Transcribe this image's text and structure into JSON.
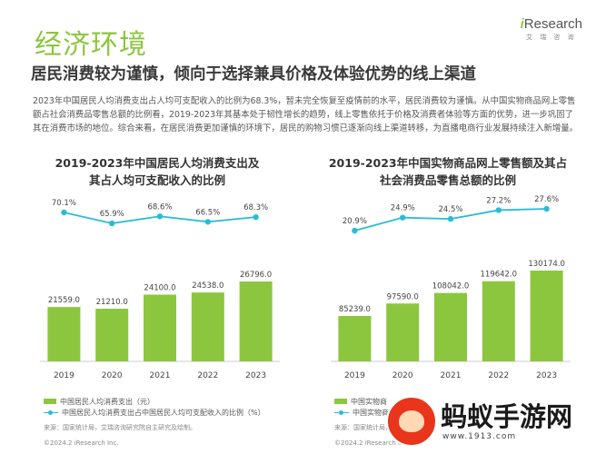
{
  "page": {
    "section_title": "经济环境",
    "logo_brand_i": "i",
    "logo_brand_rest": "Research",
    "logo_sub": "艾 瑞 咨 询",
    "headline": "居民消费较为谨慎，倾向于选择兼具价格及体验优势的线上渠道",
    "body": "2023年中国居民人均消费支出占人均可支配收入的比例为68.3%，暂未完全恢复至疫情前的水平，居民消费较为谨慎。从中国实物商品网上零售额占社会消费品零售总额的比例看，2019-2023年其基本处于韧性增长的趋势，线上零售依托于价格及消费者体验等方面的优势，进一步巩固了其在消费市场的地位。综合来看，在居民消费更加谨慎的环境下，居民的购物习惯已逐渐向线上渠道转移，为直播电商行业发展持续注入新增量。",
    "watermark_text": "蚂蚁手游网",
    "watermark_url": "www.1913.com"
  },
  "colors": {
    "accent_green": "#8cc63f",
    "line_blue": "#2bbcd4"
  },
  "chart_data": [
    {
      "type": "bar",
      "title": "2019-2023年中国居民人均消费支出及其占人均可支配收入的比例",
      "title_lines": [
        "2019-2023年中国居民人均消费支出及",
        "其占人均可支配收入的比例"
      ],
      "categories": [
        "2019",
        "2020",
        "2021",
        "2022",
        "2023"
      ],
      "series": [
        {
          "name": "中国居民人均消费支出（元）",
          "type": "bar",
          "values": [
            21559.0,
            21210.0,
            24100.0,
            24538.0,
            26796.0
          ],
          "labels": [
            "21559.0",
            "21210.0",
            "24100.0",
            "24538.0",
            "26796.0"
          ]
        },
        {
          "name": "中国居民人均消费支出占中国居民人均可支配收入的比例（%）",
          "type": "line",
          "values": [
            70.1,
            65.9,
            68.6,
            66.5,
            68.3
          ],
          "labels": [
            "70.1%",
            "65.9%",
            "68.6%",
            "66.5%",
            "68.3%"
          ]
        }
      ],
      "source": "来源：国家统计局，艾瑞咨询研究院自主研究及绘制。",
      "copyright": "©2024.2 iResearch Inc."
    },
    {
      "type": "bar",
      "title": "2019-2023年中国实物商品网上零售额及其占社会消费品零售总额的比例",
      "title_lines": [
        "2019-2023年中国实物商品网上零售额及其占",
        "社会消费品零售总额的比例"
      ],
      "categories": [
        "2019",
        "2020",
        "2021",
        "2022",
        "2023"
      ],
      "series": [
        {
          "name": "中国实物商",
          "type": "bar",
          "values": [
            85239.0,
            97590.0,
            108042.0,
            119642.0,
            130174.0
          ],
          "labels": [
            "85239.0",
            "97590.0",
            "108042.0",
            "119642.0",
            "130174.0"
          ]
        },
        {
          "name": "中国实物商",
          "type": "line",
          "values": [
            20.9,
            24.9,
            24.5,
            27.2,
            27.6
          ],
          "labels": [
            "20.9%",
            "24.9%",
            "24.5%",
            "27.2%",
            "27.6%"
          ]
        }
      ],
      "source": "来源：国家统计局，艾",
      "copyright": "©2024.2 iResearch Inc."
    }
  ]
}
